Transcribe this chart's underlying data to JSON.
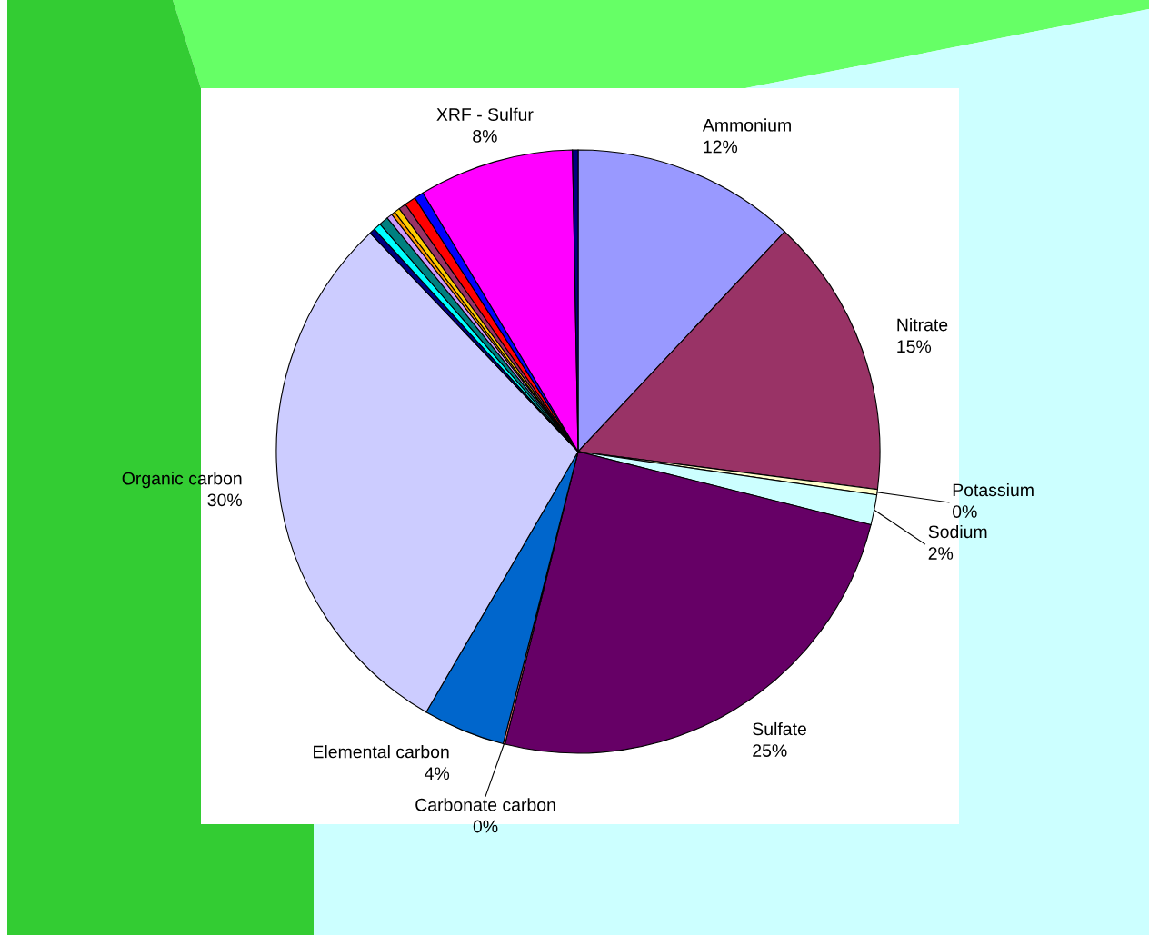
{
  "chart_data": {
    "type": "pie",
    "categories": [
      "Ammonium",
      "Nitrate",
      "Potassium",
      "Sodium",
      "Sulfate",
      "Carbonate carbon",
      "Elemental carbon",
      "Organic carbon",
      null,
      null,
      null,
      null,
      null,
      null,
      null,
      null,
      null,
      "XRF - Sulfur",
      null
    ],
    "values": [
      12.0,
      15.0,
      0.3,
      1.6,
      25.0,
      0.1,
      4.4,
      29.5,
      0.3,
      0.4,
      0.5,
      0.3,
      0.2,
      0.3,
      0.4,
      0.6,
      0.5,
      8.3,
      0.3
    ],
    "value_labels": [
      "12%",
      "15%",
      "0%",
      "2%",
      "25%",
      "0%",
      "4%",
      "30%",
      null,
      null,
      null,
      null,
      null,
      null,
      null,
      null,
      null,
      "8%",
      null
    ],
    "colors": [
      "#9999ff",
      "#993366",
      "#ffffcc",
      "#ccffff",
      "#660066",
      "#ff8080",
      "#0066cc",
      "#ccccff",
      "#000080",
      "#00ffff",
      "#008080",
      "#cc99ff",
      "#ff9900",
      "#ffcc00",
      "#993366",
      "#ff0000",
      "#0000ff",
      "#ff00ff",
      "#000080"
    ],
    "legend": false
  }
}
